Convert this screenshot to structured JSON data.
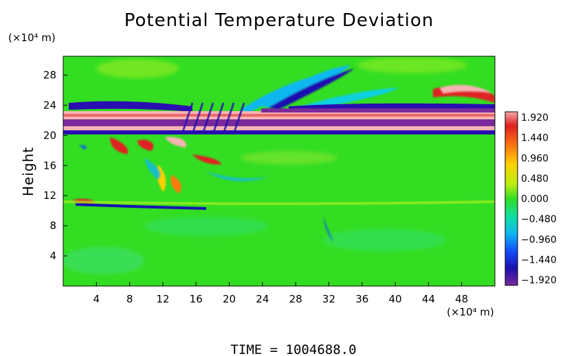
{
  "chart_data": {
    "type": "heatmap",
    "title": "Potential Temperature Deviation",
    "ylabel": "Height",
    "y_unit_label": "(×10⁴ m)",
    "x_unit_label": "(×10⁴ m)",
    "xlim": [
      0,
      52
    ],
    "ylim": [
      0,
      30.5
    ],
    "x_ticks": [
      "4",
      "8",
      "12",
      "16",
      "20",
      "24",
      "28",
      "32",
      "36",
      "40",
      "44",
      "48"
    ],
    "y_ticks": [
      "4",
      "8",
      "12",
      "16",
      "20",
      "24",
      "28"
    ],
    "colorbar": {
      "labels": [
        "1.920",
        "1.440",
        "0.960",
        "0.480",
        "0.000",
        "−0.480",
        "−0.960",
        "−1.440",
        "−1.920"
      ],
      "min": -1.92,
      "max": 1.92
    },
    "time_label": "TIME  =  1004688.0",
    "colors": {
      "background_field": "#33dd22",
      "cold": "#2a0fb0",
      "warm": "#e02020",
      "extreme_warm": "#f7b3b3",
      "extreme_cold": "#7a2a9a"
    }
  }
}
